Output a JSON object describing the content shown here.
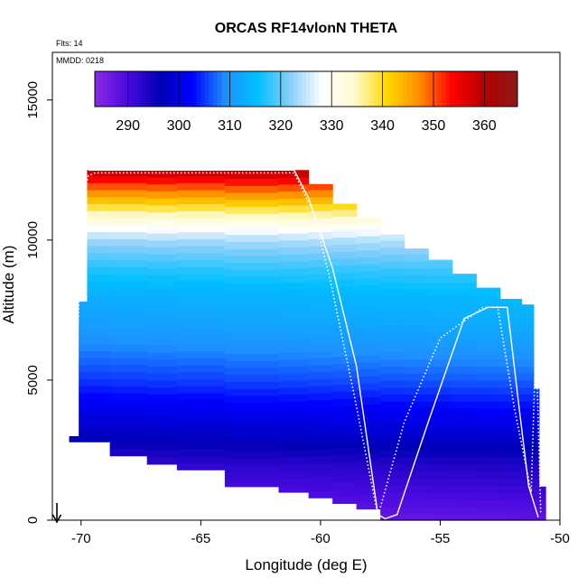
{
  "chart_data": {
    "type": "heatmap",
    "title": "ORCAS RF14vlonN THETA",
    "annotations": {
      "flights": "Flts: 14",
      "date": "MMDD: 0218"
    },
    "xlabel": "Longitude (deg E)",
    "ylabel": "Altitude (m)",
    "xlim": [
      -71.2,
      -50
    ],
    "ylim": [
      0,
      16700
    ],
    "x_ticks": [
      -70,
      -65,
      -60,
      -55,
      -50
    ],
    "y_ticks": [
      0,
      5000,
      10000,
      15000
    ],
    "colorbar": {
      "range": [
        283.5,
        366.5
      ],
      "ticks": [
        290,
        300,
        310,
        320,
        330,
        340,
        350,
        360
      ],
      "colors": [
        "#8a2be2",
        "#4b0ae0",
        "#0000b4",
        "#0000ff",
        "#1e90ff",
        "#00bfff",
        "#87cefa",
        "#ffffff",
        "#fffacd",
        "#ffd700",
        "#ff8c00",
        "#ff0000",
        "#b20000",
        "#8b1a1a"
      ]
    },
    "theta_profile": {
      "altitude": [
        0,
        1000,
        2000,
        3000,
        4000,
        5000,
        6000,
        7000,
        8000,
        9000,
        10000,
        10500,
        11000,
        11500,
        12000,
        12500
      ],
      "theta": [
        287,
        290,
        293,
        298,
        302,
        306,
        309,
        312,
        314,
        318,
        324,
        330,
        337,
        345,
        352,
        360
      ]
    },
    "columns": [
      {
        "lon": -70.3,
        "top": 3000,
        "bottom": 2800
      },
      {
        "lon": -69.9,
        "top": 7800,
        "bottom": 2800
      },
      {
        "lon": -69.6,
        "top": 12500,
        "bottom": 2800
      },
      {
        "lon": -68.0,
        "top": 12500,
        "bottom": 2300
      },
      {
        "lon": -66.5,
        "top": 12500,
        "bottom": 2000
      },
      {
        "lon": -65.5,
        "top": 12500,
        "bottom": 1800
      },
      {
        "lon": -62.5,
        "top": 12500,
        "bottom": 1200
      },
      {
        "lon": -61.0,
        "top": 12500,
        "bottom": 1000
      },
      {
        "lon": -60.0,
        "top": 12000,
        "bottom": 800
      },
      {
        "lon": -59.0,
        "top": 11300,
        "bottom": 600
      },
      {
        "lon": -58.0,
        "top": 10800,
        "bottom": 400
      },
      {
        "lon": -57.0,
        "top": 10200,
        "bottom": 0
      },
      {
        "lon": -56.0,
        "top": 9700,
        "bottom": 0
      },
      {
        "lon": -55.0,
        "top": 9300,
        "bottom": 0
      },
      {
        "lon": -54.0,
        "top": 8800,
        "bottom": 0
      },
      {
        "lon": -53.0,
        "top": 8300,
        "bottom": 0
      },
      {
        "lon": -52.0,
        "top": 7900,
        "bottom": 0
      },
      {
        "lon": -51.2,
        "top": 7700,
        "bottom": 0
      },
      {
        "lon": -51.0,
        "top": 4700,
        "bottom": 0
      },
      {
        "lon": -50.75,
        "top": 1200,
        "bottom": 0
      }
    ],
    "flight_track_solid": {
      "lon": [
        -69.7,
        -61.1,
        -60.5,
        -59.5,
        -58.5,
        -57.6,
        -57.3,
        -56.8,
        -55.5,
        -54.0,
        -53.0,
        -52.2,
        -51.7,
        -51.3,
        -50.9
      ],
      "alt": [
        12500,
        12500,
        11500,
        9000,
        5500,
        200,
        50,
        200,
        3500,
        7200,
        7600,
        7600,
        4000,
        1200,
        100
      ]
    },
    "flight_track_dotted": {
      "lon": [
        -70.3,
        -70.1,
        -69.9,
        -69.7,
        -69.4,
        -61.1,
        -60.3,
        -59.6,
        -58.6,
        -57.6,
        -56.5,
        -55.0,
        -53.2,
        -52.6,
        -51.9,
        -51.2,
        -51.0,
        -50.8
      ],
      "alt": [
        3000,
        7600,
        11600,
        12300,
        12400,
        12400,
        11000,
        8600,
        4500,
        150,
        3500,
        6500,
        7600,
        7600,
        4000,
        1000,
        6500,
        200
      ]
    }
  }
}
